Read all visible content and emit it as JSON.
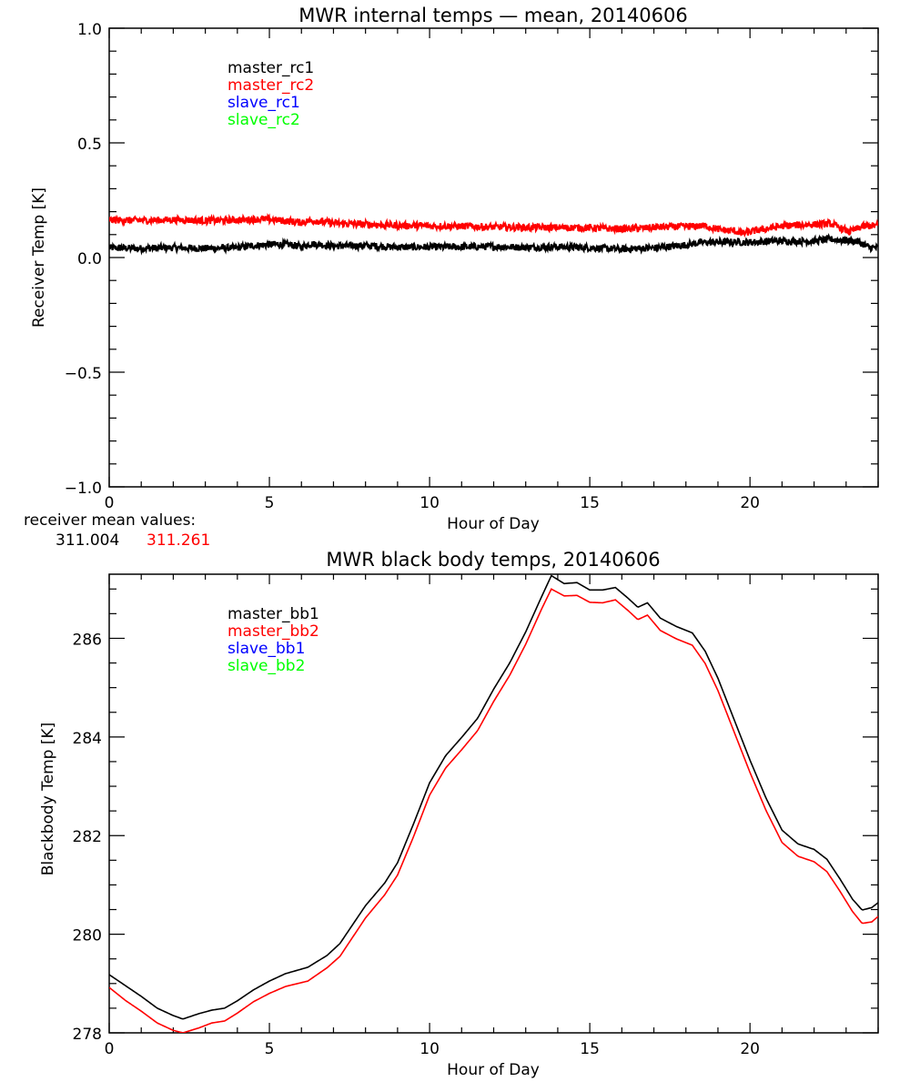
{
  "chart_data": [
    {
      "type": "line",
      "title": "MWR internal temps — mean, 20140606",
      "xlabel": "Hour of Day",
      "ylabel": "Receiver Temp [K]",
      "xlim": [
        0,
        24
      ],
      "ylim": [
        -1.0,
        1.0
      ],
      "xticks": [
        0,
        5,
        10,
        15,
        20
      ],
      "xtick_labels": [
        "0",
        "5",
        "10",
        "15",
        "20"
      ],
      "yticks": [
        -1.0,
        -0.5,
        0.0,
        0.5,
        1.0
      ],
      "ytick_labels": [
        "−1.0",
        "−0.5",
        "0.0",
        "0.5",
        "1.0"
      ],
      "x_minor_per_major": 5,
      "y_minor_per_major": 5,
      "grid": false,
      "legend": {
        "placement": "top-left",
        "entries": [
          {
            "label": "master_rc1",
            "color": "#000000"
          },
          {
            "label": "master_rc2",
            "color": "#ff0000"
          },
          {
            "label": "slave_rc1",
            "color": "#0000ff"
          },
          {
            "label": "slave_rc2",
            "color": "#00ff00"
          }
        ]
      },
      "noisy": true,
      "series": [
        {
          "name": "master_rc1",
          "color": "#000000",
          "x": [
            0,
            1,
            2,
            3,
            4,
            4.5,
            5,
            5.6,
            6,
            6.3,
            7,
            8,
            9,
            10,
            11,
            12,
            13,
            14,
            15,
            16,
            16.5,
            17,
            17.5,
            18,
            18.5,
            19,
            19.5,
            20,
            20.5,
            21,
            21.5,
            22,
            22.5,
            23,
            23.4,
            23.7,
            24
          ],
          "y": [
            0.042,
            0.04,
            0.043,
            0.04,
            0.043,
            0.052,
            0.057,
            0.057,
            0.047,
            0.06,
            0.05,
            0.052,
            0.045,
            0.046,
            0.046,
            0.048,
            0.044,
            0.047,
            0.043,
            0.036,
            0.04,
            0.042,
            0.048,
            0.055,
            0.066,
            0.067,
            0.068,
            0.066,
            0.071,
            0.072,
            0.071,
            0.072,
            0.08,
            0.075,
            0.068,
            0.045,
            0.042
          ]
        },
        {
          "name": "master_rc2",
          "color": "#ff0000",
          "x": [
            0,
            1,
            2,
            3,
            4,
            4.8,
            5.5,
            6,
            6.3,
            7,
            8,
            9,
            10,
            11,
            12,
            13,
            14,
            15,
            16,
            16.7,
            17,
            18,
            18.6,
            19,
            19.5,
            19.8,
            20.2,
            21,
            21.5,
            22,
            22.5,
            22.8,
            23.1,
            23.5,
            24
          ],
          "y": [
            0.163,
            0.162,
            0.165,
            0.161,
            0.163,
            0.168,
            0.16,
            0.152,
            0.162,
            0.15,
            0.145,
            0.14,
            0.138,
            0.137,
            0.133,
            0.131,
            0.131,
            0.129,
            0.125,
            0.128,
            0.132,
            0.135,
            0.138,
            0.123,
            0.116,
            0.106,
            0.118,
            0.137,
            0.142,
            0.144,
            0.148,
            0.13,
            0.112,
            0.135,
            0.14
          ]
        },
        {
          "name": "slave_rc1",
          "color": "#0000ff",
          "x": [],
          "y": []
        },
        {
          "name": "slave_rc2",
          "color": "#00ff00",
          "x": [],
          "y": []
        }
      ],
      "annotation": {
        "label": "receiver mean values:",
        "values": [
          {
            "text": "311.004",
            "color": "#000000"
          },
          {
            "text": "311.261",
            "color": "#ff0000"
          }
        ]
      }
    },
    {
      "type": "line",
      "title": "MWR black body temps, 20140606",
      "xlabel": "Hour of Day",
      "ylabel": "Blackbody Temp [K]",
      "xlim": [
        0,
        24
      ],
      "ylim": [
        278,
        287.3
      ],
      "xticks": [
        0,
        5,
        10,
        15,
        20
      ],
      "xtick_labels": [
        "0",
        "5",
        "10",
        "15",
        "20"
      ],
      "yticks": [
        278,
        280,
        282,
        284,
        286
      ],
      "ytick_labels": [
        "278",
        "280",
        "282",
        "284",
        "286"
      ],
      "x_minor_per_major": 5,
      "y_minor_per_major": 4,
      "grid": false,
      "legend": {
        "placement": "top-left",
        "entries": [
          {
            "label": "master_bb1",
            "color": "#000000"
          },
          {
            "label": "master_bb2",
            "color": "#ff0000"
          },
          {
            "label": "slave_bb1",
            "color": "#0000ff"
          },
          {
            "label": "slave_bb2",
            "color": "#00ff00"
          }
        ]
      },
      "noisy": false,
      "series": [
        {
          "name": "master_bb1",
          "color": "#000000",
          "x": [
            0,
            0.5,
            1,
            1.5,
            2,
            2.3,
            2.8,
            3.2,
            3.6,
            4,
            4.5,
            5,
            5.5,
            6.2,
            6.8,
            7.2,
            8,
            8.6,
            9,
            9.5,
            10,
            10.5,
            11,
            11.5,
            12,
            12.5,
            13,
            13.5,
            13.8,
            14.2,
            14.6,
            15,
            15.4,
            15.8,
            16.2,
            16.5,
            16.8,
            17.2,
            17.7,
            18.2,
            18.6,
            19,
            19.5,
            20,
            20.5,
            21,
            21.5,
            22,
            22.4,
            22.8,
            23.2,
            23.5,
            23.8,
            24
          ],
          "y": [
            279.18,
            278.96,
            278.74,
            278.5,
            278.35,
            278.28,
            278.39,
            278.46,
            278.5,
            278.65,
            278.87,
            279.05,
            279.2,
            279.33,
            279.57,
            279.81,
            280.58,
            281.04,
            281.45,
            282.24,
            283.07,
            283.62,
            283.99,
            284.38,
            284.97,
            285.5,
            286.13,
            286.85,
            287.27,
            287.11,
            287.13,
            286.98,
            286.98,
            287.03,
            286.81,
            286.63,
            286.72,
            286.41,
            286.24,
            286.11,
            285.74,
            285.19,
            284.36,
            283.53,
            282.76,
            282.11,
            281.83,
            281.72,
            281.52,
            281.13,
            280.71,
            280.49,
            280.54,
            280.64
          ]
        },
        {
          "name": "master_bb2",
          "color": "#ff0000",
          "x": [
            0,
            0.5,
            1,
            1.5,
            2,
            2.3,
            2.8,
            3.2,
            3.6,
            4,
            4.5,
            5,
            5.5,
            6.2,
            6.8,
            7.2,
            8,
            8.6,
            9,
            9.5,
            10,
            10.5,
            11,
            11.5,
            12,
            12.5,
            13,
            13.5,
            13.8,
            14.2,
            14.6,
            15,
            15.4,
            15.8,
            16.2,
            16.5,
            16.8,
            17.2,
            17.7,
            18.2,
            18.6,
            19,
            19.5,
            20,
            20.5,
            21,
            21.5,
            22,
            22.4,
            22.8,
            23.2,
            23.5,
            23.8,
            24
          ],
          "y": [
            278.92,
            278.66,
            278.44,
            278.2,
            278.05,
            278.0,
            278.1,
            278.2,
            278.24,
            278.4,
            278.63,
            278.8,
            278.94,
            279.05,
            279.32,
            279.55,
            280.33,
            280.8,
            281.2,
            281.98,
            282.82,
            283.37,
            283.74,
            284.13,
            284.72,
            285.25,
            285.88,
            286.6,
            287.0,
            286.86,
            286.87,
            286.73,
            286.72,
            286.78,
            286.56,
            286.38,
            286.47,
            286.16,
            285.99,
            285.86,
            285.49,
            284.94,
            284.11,
            283.28,
            282.51,
            281.86,
            281.58,
            281.47,
            281.27,
            280.88,
            280.46,
            280.22,
            280.25,
            280.36
          ]
        },
        {
          "name": "slave_bb1",
          "color": "#0000ff",
          "x": [],
          "y": []
        },
        {
          "name": "slave_bb2",
          "color": "#00ff00",
          "x": [],
          "y": []
        }
      ]
    }
  ]
}
